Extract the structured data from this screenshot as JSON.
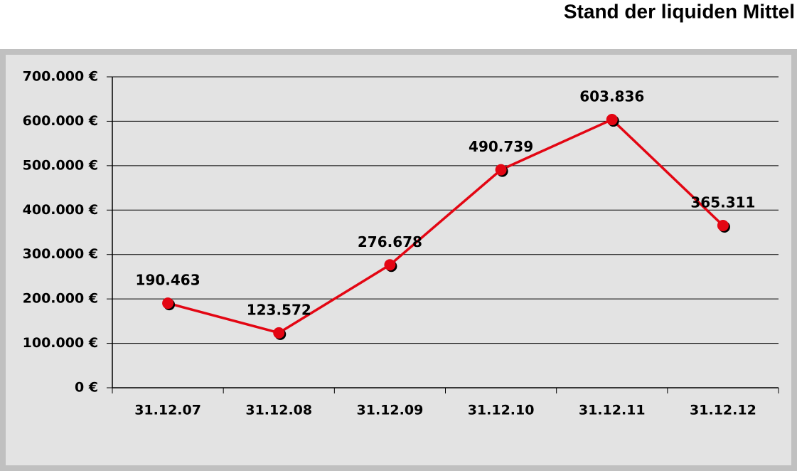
{
  "chart_data": {
    "type": "line",
    "title": "Stand der liquiden Mittel",
    "categories": [
      "31.12.07",
      "31.12.08",
      "31.12.09",
      "31.12.10",
      "31.12.11",
      "31.12.12"
    ],
    "series": [
      {
        "name": "Stand der liquiden Mittel",
        "color": "#e30613",
        "values": [
          190463,
          123572,
          276678,
          490739,
          603836,
          365311
        ],
        "value_labels": [
          "190.463",
          "123.572",
          "276.678",
          "490.739",
          "603.836",
          "365.311"
        ]
      }
    ],
    "ylim": [
      0,
      700000
    ],
    "yticks": [
      {
        "value": 0,
        "label": "0 €"
      },
      {
        "value": 100000,
        "label": "100.000 €"
      },
      {
        "value": 200000,
        "label": "200.000 €"
      },
      {
        "value": 300000,
        "label": "300.000 €"
      },
      {
        "value": 400000,
        "label": "400.000 €"
      },
      {
        "value": 500000,
        "label": "500.000 €"
      },
      {
        "value": 600000,
        "label": "600.000 €"
      },
      {
        "value": 700000,
        "label": "700.000 €"
      }
    ],
    "grid": true
  }
}
